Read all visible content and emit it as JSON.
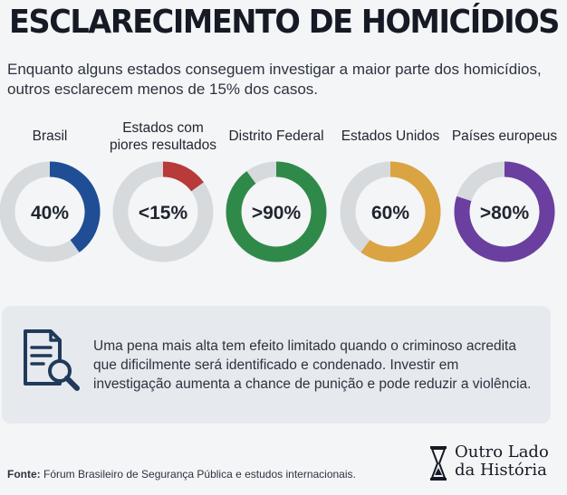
{
  "header": {
    "title": "ESCLARECIMENTO DE HOMICÍDIOS",
    "subtitle": "Enquanto alguns estados conseguem investigar a maior parte dos homicídios, outros esclarecem menos de 15% dos casos."
  },
  "chart_data": {
    "type": "pie",
    "unit": "%",
    "track_color": "#d7dadd",
    "series": [
      {
        "label": "Brasil",
        "display": "40%",
        "value": 40,
        "color": "#1f4e97"
      },
      {
        "label": "Estados com piores resultados",
        "display": "<15%",
        "value": 15,
        "color": "#b83a3a"
      },
      {
        "label": "Distrito Federal",
        "display": ">90%",
        "value": 90,
        "color": "#2f8a4a"
      },
      {
        "label": "Estados Unidos",
        "display": "60%",
        "value": 60,
        "color": "#d9a441"
      },
      {
        "label": "Países europeus",
        "display": ">80%",
        "value": 80,
        "color": "#6a3fa0"
      }
    ]
  },
  "info": {
    "text": "Uma pena mais alta tem efeito limitado quando o criminoso acredita que dificilmente será identificado e condenado. Investir em investigação aumenta a chance de punição e pode reduzir a violência.",
    "icon": "document-search-icon"
  },
  "footer": {
    "source_label": "Fonte:",
    "source_text": "Fórum Brasileiro de Segurança Pública e estudos internacionais.",
    "brand_line1": "Outro Lado",
    "brand_line2": "da História",
    "brand_icon": "hourglass-icon"
  }
}
